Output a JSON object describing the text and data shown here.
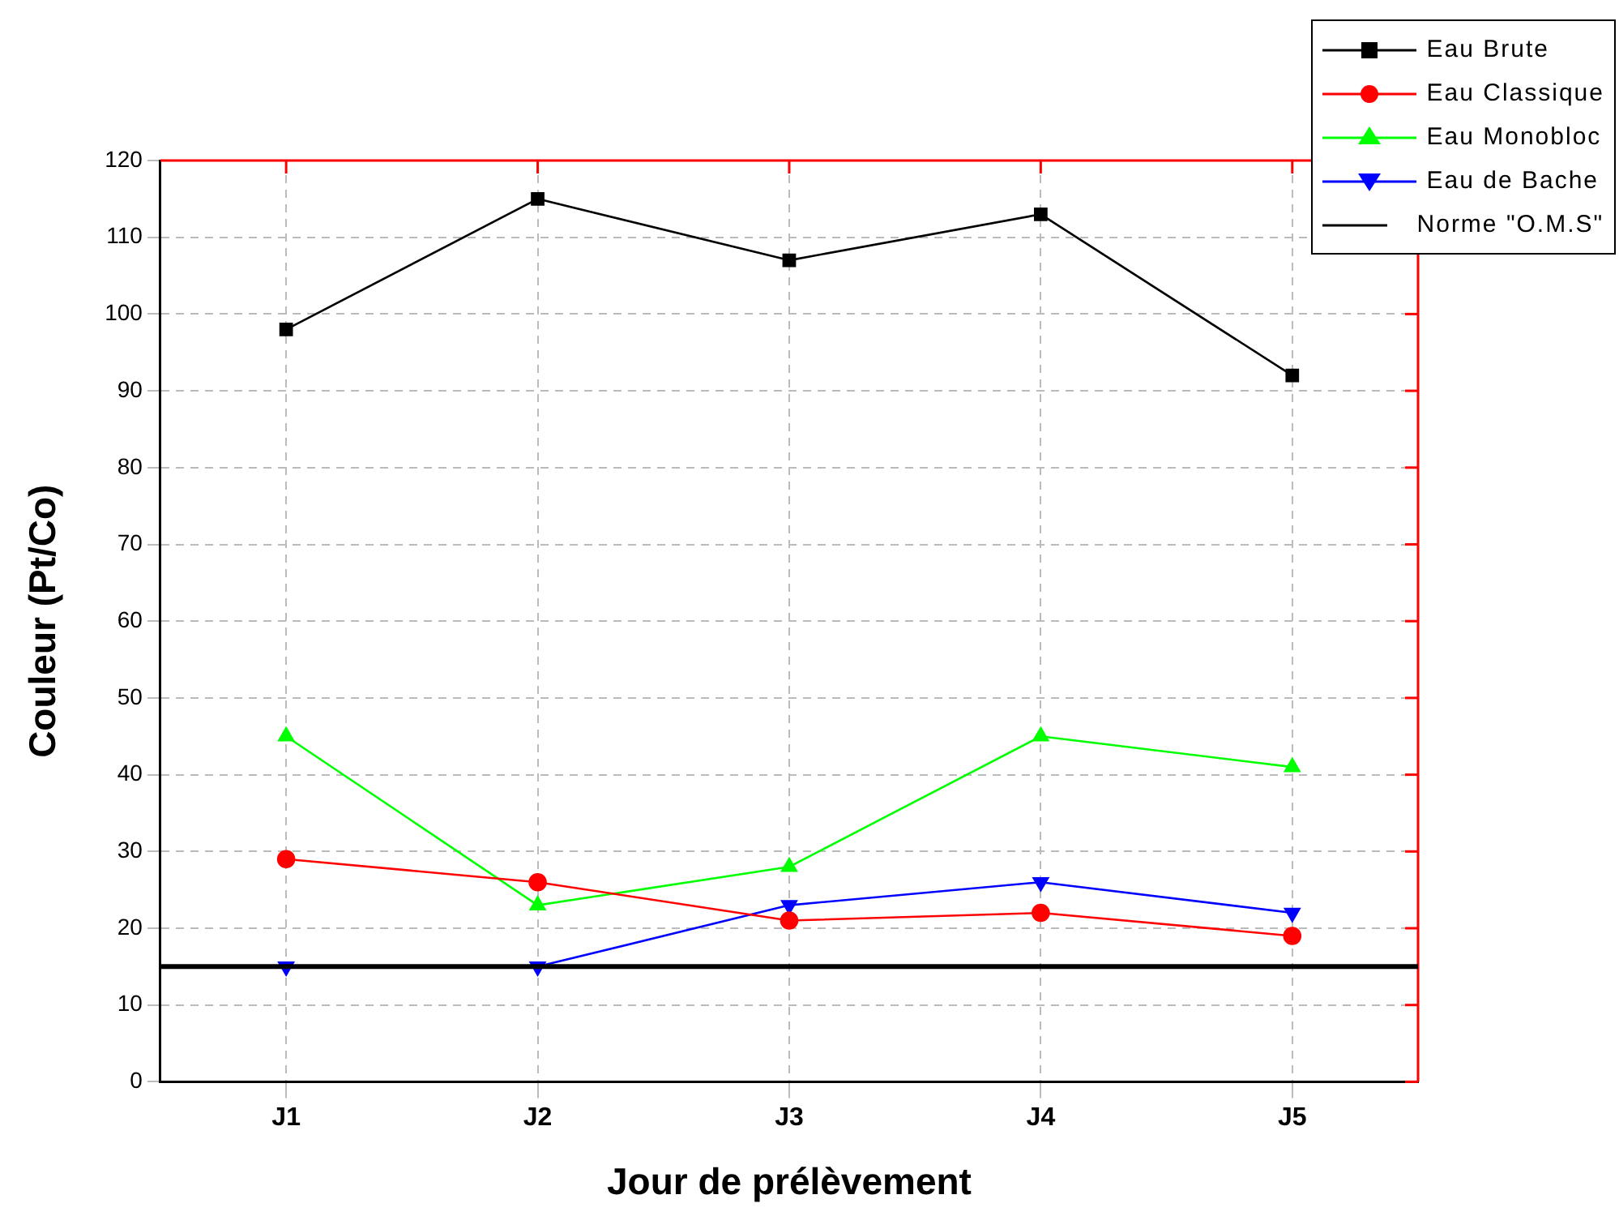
{
  "chart_data": {
    "type": "line",
    "xlabel": "Jour de prélèvement",
    "ylabel": "Couleur (Pt/Co)",
    "categories": [
      "J1",
      "J2",
      "J3",
      "J4",
      "J5"
    ],
    "series": [
      {
        "name": "Eau Brute",
        "color": "#000000",
        "marker": "square",
        "values": [
          98,
          115,
          107,
          113,
          92
        ]
      },
      {
        "name": "Eau Classique",
        "color": "#ff0000",
        "marker": "circle",
        "values": [
          29,
          26,
          21,
          22,
          19
        ]
      },
      {
        "name": "Eau Monobloc",
        "color": "#00ff00",
        "marker": "triangle",
        "values": [
          45,
          23,
          28,
          45,
          41
        ]
      },
      {
        "name": "Eau de Bache",
        "color": "#0000ff",
        "marker": "triangle-down",
        "values": [
          15,
          15,
          23,
          26,
          22
        ]
      }
    ],
    "ref_lines": [
      {
        "axis": "y",
        "value": 15,
        "label": "Norme \"O.M.S\"",
        "color": "#000000"
      }
    ],
    "ylim": [
      0,
      120
    ],
    "yticks": [
      0,
      10,
      20,
      30,
      40,
      50,
      60,
      70,
      80,
      90,
      100,
      110,
      120
    ],
    "grid": true,
    "legend": "top right"
  }
}
